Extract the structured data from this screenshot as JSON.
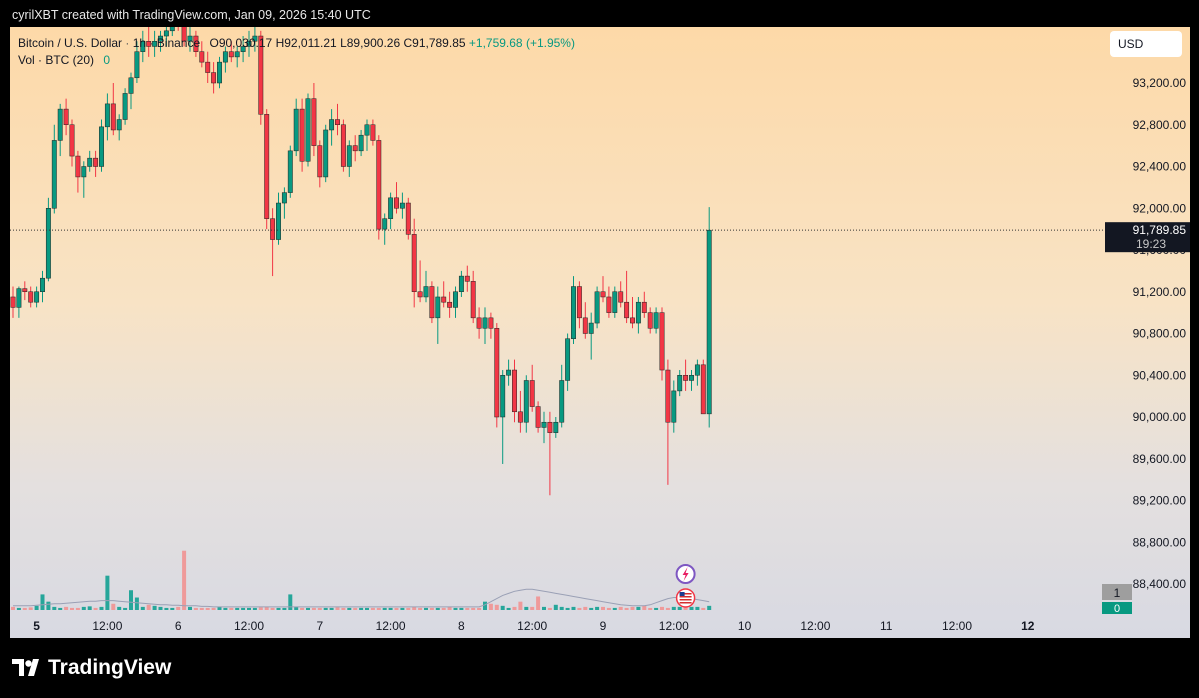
{
  "caption": "cyrilXBT created with TradingView.com, Jan 09, 2026 15:40 UTC",
  "brand": "TradingView",
  "legend": {
    "symbol": "Bitcoin / U.S. Dollar",
    "interval": "1h",
    "exchange": "Binance",
    "open": "O90,030.17",
    "high": "H92,011.21",
    "low": "L89,900.26",
    "close": "C91,789.85",
    "change": "+1,759.68 (+1.95%)",
    "volume_label": "Vol · BTC (20)",
    "volume_value": "0"
  },
  "currency_button": "USD",
  "price_label": {
    "price": "91,789.85",
    "countdown": "19:23"
  },
  "volume_scale_labels": [
    "1",
    "0"
  ],
  "colors": {
    "up": "#089981",
    "down": "#f23645",
    "vol_up": "#26a69a",
    "vol_down": "#ef9a9a"
  },
  "chart_data": {
    "type": "candlestick",
    "title": "Bitcoin / U.S. Dollar · 1h · Binance",
    "y_ticks": [
      93200,
      92800,
      92400,
      92000,
      91600,
      91200,
      90800,
      90400,
      90000,
      89600,
      89200,
      88800,
      88400
    ],
    "y_tick_labels": [
      "93,200.00",
      "92,800.00",
      "92,400.00",
      "92,000.00",
      "91,600.00",
      "91,200.00",
      "90,800.00",
      "90,400.00",
      "90,000.00",
      "89,600.00",
      "89,200.00",
      "88,800.00",
      "88,400.00"
    ],
    "x_ticks": [
      {
        "label": "5",
        "bar": 4,
        "bold": true
      },
      {
        "label": "12:00",
        "bar": 16
      },
      {
        "label": "6",
        "bar": 28
      },
      {
        "label": "12:00",
        "bar": 40
      },
      {
        "label": "7",
        "bar": 52
      },
      {
        "label": "12:00",
        "bar": 64
      },
      {
        "label": "8",
        "bar": 76
      },
      {
        "label": "12:00",
        "bar": 88
      },
      {
        "label": "9",
        "bar": 100
      },
      {
        "label": "12:00",
        "bar": 112
      },
      {
        "label": "10",
        "bar": 124
      },
      {
        "label": "12:00",
        "bar": 136
      },
      {
        "label": "11",
        "bar": 148
      },
      {
        "label": "12:00",
        "bar": 160
      },
      {
        "label": "12",
        "bar": 172,
        "bold": true
      }
    ],
    "last_price": 91789.85,
    "ohlc": [
      [
        91150,
        91250,
        90950,
        91050
      ],
      [
        91050,
        91250,
        90950,
        91230
      ],
      [
        91230,
        91300,
        91120,
        91200
      ],
      [
        91200,
        91250,
        91050,
        91100
      ],
      [
        91100,
        91250,
        91050,
        91200
      ],
      [
        91200,
        91400,
        91100,
        91330
      ],
      [
        91330,
        92100,
        91300,
        92000
      ],
      [
        92000,
        92800,
        91950,
        92650
      ],
      [
        92650,
        93000,
        92500,
        92950
      ],
      [
        92950,
        93050,
        92700,
        92800
      ],
      [
        92800,
        92850,
        92400,
        92500
      ],
      [
        92500,
        92550,
        92150,
        92300
      ],
      [
        92300,
        92450,
        92100,
        92400
      ],
      [
        92400,
        92550,
        92350,
        92480
      ],
      [
        92480,
        92550,
        92300,
        92400
      ],
      [
        92400,
        92850,
        92350,
        92780
      ],
      [
        92780,
        93100,
        92650,
        93000
      ],
      [
        93000,
        93200,
        92700,
        92750
      ],
      [
        92750,
        92900,
        92650,
        92850
      ],
      [
        92850,
        93150,
        92800,
        93100
      ],
      [
        93100,
        93300,
        92950,
        93250
      ],
      [
        93250,
        93600,
        93200,
        93500
      ],
      [
        93500,
        93700,
        93400,
        93600
      ],
      [
        93600,
        93800,
        93450,
        93550
      ],
      [
        93550,
        93700,
        93450,
        93600
      ],
      [
        93600,
        93700,
        93500,
        93650
      ],
      [
        93650,
        93800,
        93550,
        93700
      ],
      [
        93700,
        93900,
        93650,
        93850
      ],
      [
        93850,
        93950,
        93700,
        93750
      ],
      [
        93750,
        93800,
        93550,
        93600
      ],
      [
        93600,
        93750,
        93500,
        93650
      ],
      [
        93650,
        93700,
        93450,
        93500
      ],
      [
        93500,
        93600,
        93350,
        93400
      ],
      [
        93400,
        93500,
        93200,
        93300
      ],
      [
        93300,
        93400,
        93100,
        93200
      ],
      [
        93200,
        93450,
        93150,
        93400
      ],
      [
        93400,
        93550,
        93300,
        93500
      ],
      [
        93500,
        93600,
        93400,
        93450
      ],
      [
        93450,
        93550,
        93350,
        93500
      ],
      [
        93500,
        93650,
        93400,
        93550
      ],
      [
        93550,
        93700,
        93450,
        93600
      ],
      [
        93600,
        93750,
        93500,
        93650
      ],
      [
        93650,
        93700,
        92800,
        92900
      ],
      [
        92900,
        92950,
        91800,
        91900
      ],
      [
        91900,
        92000,
        91350,
        91700
      ],
      [
        91700,
        92150,
        91650,
        92050
      ],
      [
        92050,
        92200,
        91900,
        92150
      ],
      [
        92150,
        92600,
        92100,
        92550
      ],
      [
        92550,
        93050,
        92500,
        92950
      ],
      [
        92950,
        93050,
        92350,
        92450
      ],
      [
        92450,
        93100,
        92400,
        93050
      ],
      [
        93050,
        93200,
        92500,
        92600
      ],
      [
        92600,
        92650,
        92200,
        92300
      ],
      [
        92300,
        92800,
        92250,
        92750
      ],
      [
        92750,
        92950,
        92600,
        92850
      ],
      [
        92850,
        93000,
        92700,
        92800
      ],
      [
        92800,
        92850,
        92350,
        92400
      ],
      [
        92400,
        92650,
        92300,
        92600
      ],
      [
        92600,
        92700,
        92450,
        92550
      ],
      [
        92550,
        92750,
        92500,
        92700
      ],
      [
        92700,
        92850,
        92550,
        92800
      ],
      [
        92800,
        92850,
        92600,
        92650
      ],
      [
        92650,
        92700,
        91700,
        91800
      ],
      [
        91800,
        91950,
        91650,
        91900
      ],
      [
        91900,
        92150,
        91800,
        92100
      ],
      [
        92100,
        92250,
        91950,
        92000
      ],
      [
        92000,
        92150,
        91900,
        92050
      ],
      [
        92050,
        92100,
        91700,
        91750
      ],
      [
        91750,
        91900,
        91050,
        91200
      ],
      [
        91200,
        91500,
        91100,
        91150
      ],
      [
        91150,
        91400,
        91100,
        91250
      ],
      [
        91250,
        91300,
        90900,
        90950
      ],
      [
        90950,
        91250,
        90700,
        91150
      ],
      [
        91150,
        91300,
        91050,
        91100
      ],
      [
        91100,
        91200,
        90950,
        91050
      ],
      [
        91050,
        91250,
        90950,
        91200
      ],
      [
        91200,
        91400,
        91150,
        91350
      ],
      [
        91350,
        91450,
        91200,
        91300
      ],
      [
        91300,
        91400,
        90900,
        90950
      ],
      [
        90950,
        91050,
        90750,
        90850
      ],
      [
        90850,
        91050,
        90700,
        90950
      ],
      [
        90950,
        91000,
        90750,
        90850
      ],
      [
        90850,
        90900,
        89900,
        90000
      ],
      [
        90000,
        90450,
        89550,
        90400
      ],
      [
        90400,
        90550,
        90300,
        90450
      ],
      [
        90450,
        90550,
        89950,
        90050
      ],
      [
        90050,
        90250,
        89850,
        89950
      ],
      [
        89950,
        90400,
        89850,
        90350
      ],
      [
        90350,
        90500,
        90050,
        90100
      ],
      [
        90100,
        90150,
        89850,
        89900
      ],
      [
        89900,
        90050,
        89750,
        89950
      ],
      [
        89950,
        90050,
        89250,
        89850
      ],
      [
        89850,
        90000,
        89800,
        89950
      ],
      [
        89950,
        90500,
        89900,
        90350
      ],
      [
        90350,
        90800,
        90250,
        90750
      ],
      [
        90750,
        91350,
        90700,
        91250
      ],
      [
        91250,
        91300,
        90850,
        90950
      ],
      [
        90950,
        91100,
        90750,
        90800
      ],
      [
        90800,
        91000,
        90550,
        90900
      ],
      [
        90900,
        91250,
        90850,
        91200
      ],
      [
        91200,
        91350,
        91100,
        91150
      ],
      [
        91150,
        91250,
        90950,
        91000
      ],
      [
        91000,
        91250,
        90950,
        91200
      ],
      [
        91200,
        91300,
        91050,
        91100
      ],
      [
        91100,
        91400,
        90900,
        90950
      ],
      [
        90950,
        91150,
        90850,
        90900
      ],
      [
        90900,
        91150,
        90800,
        91100
      ],
      [
        91100,
        91200,
        90950,
        91000
      ],
      [
        91000,
        91050,
        90800,
        90850
      ],
      [
        90850,
        91050,
        90800,
        91000
      ],
      [
        91000,
        91050,
        90350,
        90450
      ],
      [
        90450,
        90550,
        89350,
        89950
      ],
      [
        89950,
        90350,
        89850,
        90250
      ],
      [
        90250,
        90450,
        90200,
        90400
      ],
      [
        90400,
        90550,
        90250,
        90350
      ],
      [
        90350,
        90450,
        90250,
        90400
      ],
      [
        90400,
        90550,
        90300,
        90500
      ],
      [
        90500,
        90550,
        90050,
        90030
      ],
      [
        90030,
        92011,
        89900,
        91790
      ]
    ],
    "volume": [
      0.3,
      0.2,
      0.2,
      0.25,
      0.4,
      1.5,
      0.8,
      0.3,
      0.2,
      0.3,
      0.2,
      0.2,
      0.3,
      0.35,
      0.2,
      0.3,
      3.3,
      0.6,
      0.3,
      0.2,
      1.9,
      1.2,
      0.3,
      0.5,
      0.4,
      0.3,
      0.2,
      0.2,
      0.3,
      5.7,
      0.3,
      0.2,
      0.2,
      0.2,
      0.2,
      0.3,
      0.2,
      0.2,
      0.2,
      0.2,
      0.2,
      0.2,
      0.25,
      0.3,
      0.2,
      0.2,
      0.2,
      1.5,
      0.3,
      0.2,
      0.2,
      0.2,
      0.2,
      0.2,
      0.2,
      0.25,
      0.2,
      0.2,
      0.2,
      0.2,
      0.2,
      0.2,
      0.2,
      0.2,
      0.2,
      0.2,
      0.2,
      0.2,
      0.3,
      0.2,
      0.2,
      0.2,
      0.2,
      0.2,
      0.3,
      0.2,
      0.2,
      0.2,
      0.2,
      0.2,
      0.8,
      0.6,
      0.5,
      0.4,
      0.2,
      0.3,
      0.8,
      0.3,
      0.3,
      1.3,
      0.3,
      0.2,
      0.5,
      0.3,
      0.2,
      0.3,
      0.2,
      0.3,
      0.2,
      0.3,
      0.3,
      0.2,
      0.2,
      0.3,
      0.2,
      0.3,
      0.3,
      0.4,
      0.2,
      0.2,
      0.3,
      0.2,
      0.3,
      0.3,
      0.3,
      0.3,
      0.3,
      0.2,
      0.4
    ],
    "volume_ma": [
      0.4,
      0.4,
      0.4,
      0.4,
      0.45,
      0.5,
      0.55,
      0.6,
      0.6,
      0.65,
      0.7,
      0.75,
      0.8,
      0.85,
      0.85,
      0.9,
      0.9,
      0.9,
      0.85,
      0.8,
      0.75,
      0.7,
      0.65,
      0.6,
      0.55,
      0.5,
      0.5,
      0.45,
      0.45,
      0.4,
      0.4,
      0.4,
      0.35,
      0.35,
      0.3,
      0.3,
      0.3,
      0.3,
      0.3,
      0.3,
      0.3,
      0.3,
      0.3,
      0.3,
      0.3,
      0.3,
      0.3,
      0.3,
      0.3,
      0.3,
      0.3,
      0.3,
      0.3,
      0.3,
      0.3,
      0.3,
      0.3,
      0.3,
      0.3,
      0.3,
      0.3,
      0.3,
      0.3,
      0.3,
      0.3,
      0.3,
      0.3,
      0.3,
      0.3,
      0.3,
      0.3,
      0.3,
      0.3,
      0.3,
      0.3,
      0.3,
      0.3,
      0.3,
      0.3,
      0.3,
      0.5,
      0.8,
      1.1,
      1.4,
      1.6,
      1.8,
      1.9,
      2.0,
      2.0,
      1.9,
      1.8,
      1.7,
      1.6,
      1.5,
      1.4,
      1.3,
      1.2,
      1.1,
      1.0,
      0.9,
      0.8,
      0.7,
      0.6,
      0.5,
      0.45,
      0.4,
      0.4,
      0.4,
      0.5,
      0.7,
      0.9,
      1.1,
      1.2,
      1.2,
      1.2,
      1.1,
      1.0,
      0.9,
      0.8
    ],
    "notes": [
      {
        "kind": "lightning-icon",
        "bar": 114
      },
      {
        "kind": "us-flag-icon",
        "bar": 114
      }
    ]
  }
}
